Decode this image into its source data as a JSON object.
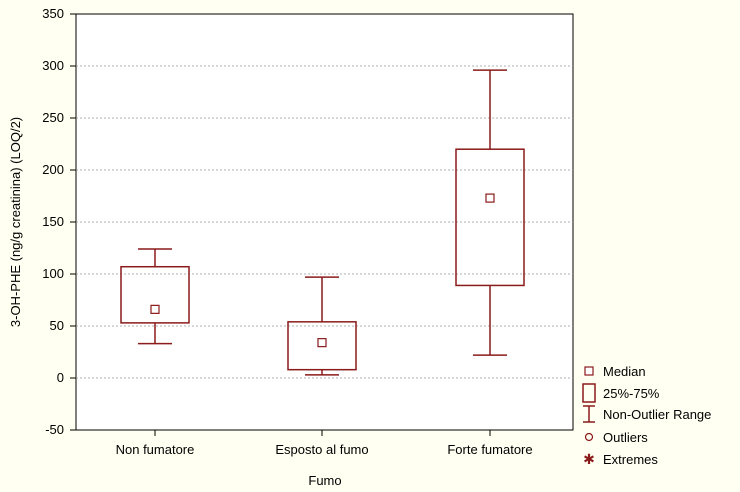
{
  "chart_data": {
    "type": "box",
    "xlabel": "Fumo",
    "ylabel": "3-OH-PHE (ng/g creatinina) (LOQ/2)",
    "ylim": [
      -50,
      350
    ],
    "yticks": [
      -50,
      0,
      50,
      100,
      150,
      200,
      250,
      300,
      350
    ],
    "grid": true,
    "legend_placement": "right",
    "colors": {
      "box": "#8b1a1a",
      "plot_bg": "#ffffff",
      "page_bg": "#fffff2",
      "grid": "#999999"
    },
    "categories": [
      "Non fumatore",
      "Esposto al fumo",
      "Forte fumatore"
    ],
    "boxes": [
      {
        "category": "Non fumatore",
        "min": 33,
        "q1": 53,
        "median": 66,
        "q3": 107,
        "max": 124
      },
      {
        "category": "Esposto al fumo",
        "min": 3,
        "q1": 8,
        "median": 34,
        "q3": 54,
        "max": 97
      },
      {
        "category": "Forte fumatore",
        "min": 22,
        "q1": 89,
        "median": 173,
        "q3": 220,
        "max": 296
      }
    ],
    "legend": [
      {
        "icon": "median-square-icon",
        "label": "Median"
      },
      {
        "icon": "box-rect-icon",
        "label": "25%-75%"
      },
      {
        "icon": "whisker-range-icon",
        "label": "Non-Outlier Range"
      },
      {
        "icon": "outlier-circle-icon",
        "label": "Outliers"
      },
      {
        "icon": "extreme-star-icon",
        "label": "Extremes"
      }
    ]
  }
}
